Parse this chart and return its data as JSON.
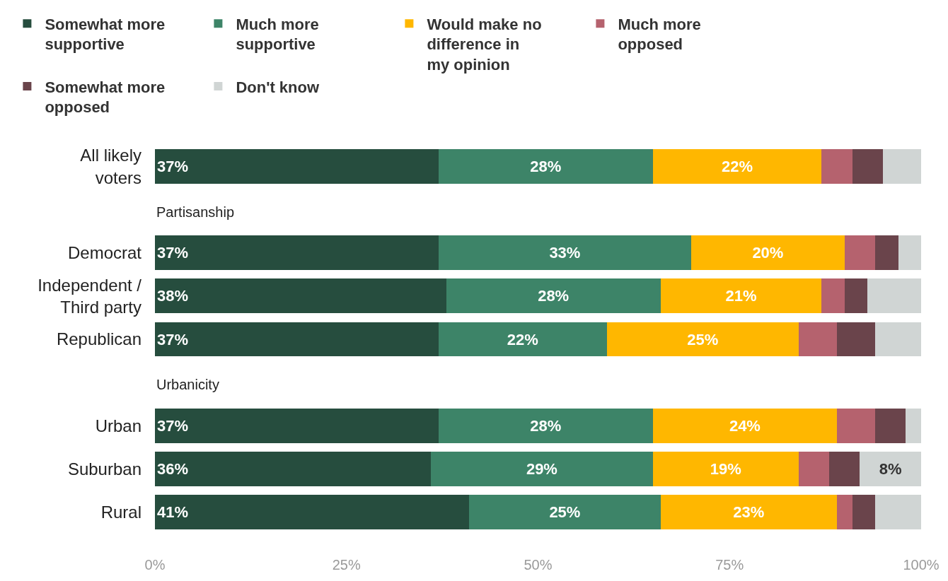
{
  "chart_data": {
    "type": "bar",
    "orientation": "horizontal",
    "stacked": true,
    "categories": [
      "All likely voters",
      "Partisanship",
      "Democrat",
      "Independent / Third party",
      "Republican",
      "Urbanicity",
      "Urban",
      "Suburban",
      "Rural"
    ],
    "series": [
      {
        "name": "Somewhat more supportive",
        "color": "#264d3e",
        "values": [
          37,
          null,
          37,
          38,
          37,
          null,
          37,
          36,
          41
        ],
        "value_labels": [
          "37%",
          null,
          "37%",
          "38%",
          "37%",
          null,
          "37%",
          "36%",
          "41%"
        ]
      },
      {
        "name": "Much more supportive",
        "color": "#3d8468",
        "values": [
          28,
          null,
          33,
          28,
          22,
          null,
          28,
          29,
          25
        ],
        "value_labels": [
          "28%",
          null,
          "33%",
          "28%",
          "22%",
          null,
          "28%",
          "29%",
          "25%"
        ]
      },
      {
        "name": "Would make no difference in my opinion",
        "color": "#ffb700",
        "values": [
          22,
          null,
          20,
          21,
          25,
          null,
          24,
          19,
          23
        ],
        "value_labels": [
          "22%",
          null,
          "20%",
          "21%",
          "25%",
          null,
          "24%",
          "19%",
          "23%"
        ]
      },
      {
        "name": "Much more opposed",
        "color": "#b5626e",
        "values": [
          4,
          null,
          4,
          3,
          5,
          null,
          5,
          4,
          2
        ],
        "value_labels": [
          null,
          null,
          null,
          null,
          null,
          null,
          null,
          null,
          null
        ]
      },
      {
        "name": "Somewhat more opposed",
        "color": "#6a444b",
        "values": [
          4,
          null,
          3,
          3,
          5,
          null,
          4,
          4,
          3
        ],
        "value_labels": [
          null,
          null,
          null,
          null,
          null,
          null,
          null,
          null,
          null
        ]
      },
      {
        "name": "Don't know",
        "color": "#d0d5d4",
        "values": [
          5,
          null,
          3,
          7,
          6,
          null,
          2,
          8,
          6
        ],
        "value_labels": [
          null,
          null,
          null,
          null,
          null,
          null,
          null,
          "8%",
          null
        ]
      }
    ],
    "xlim": [
      0,
      100
    ],
    "xticks": [
      {
        "value": 0,
        "label": "0%"
      },
      {
        "value": 25,
        "label": "25%"
      },
      {
        "value": 50,
        "label": "50%"
      },
      {
        "value": 75,
        "label": "75%"
      },
      {
        "value": 100,
        "label": "100%"
      }
    ],
    "legend": "top"
  }
}
